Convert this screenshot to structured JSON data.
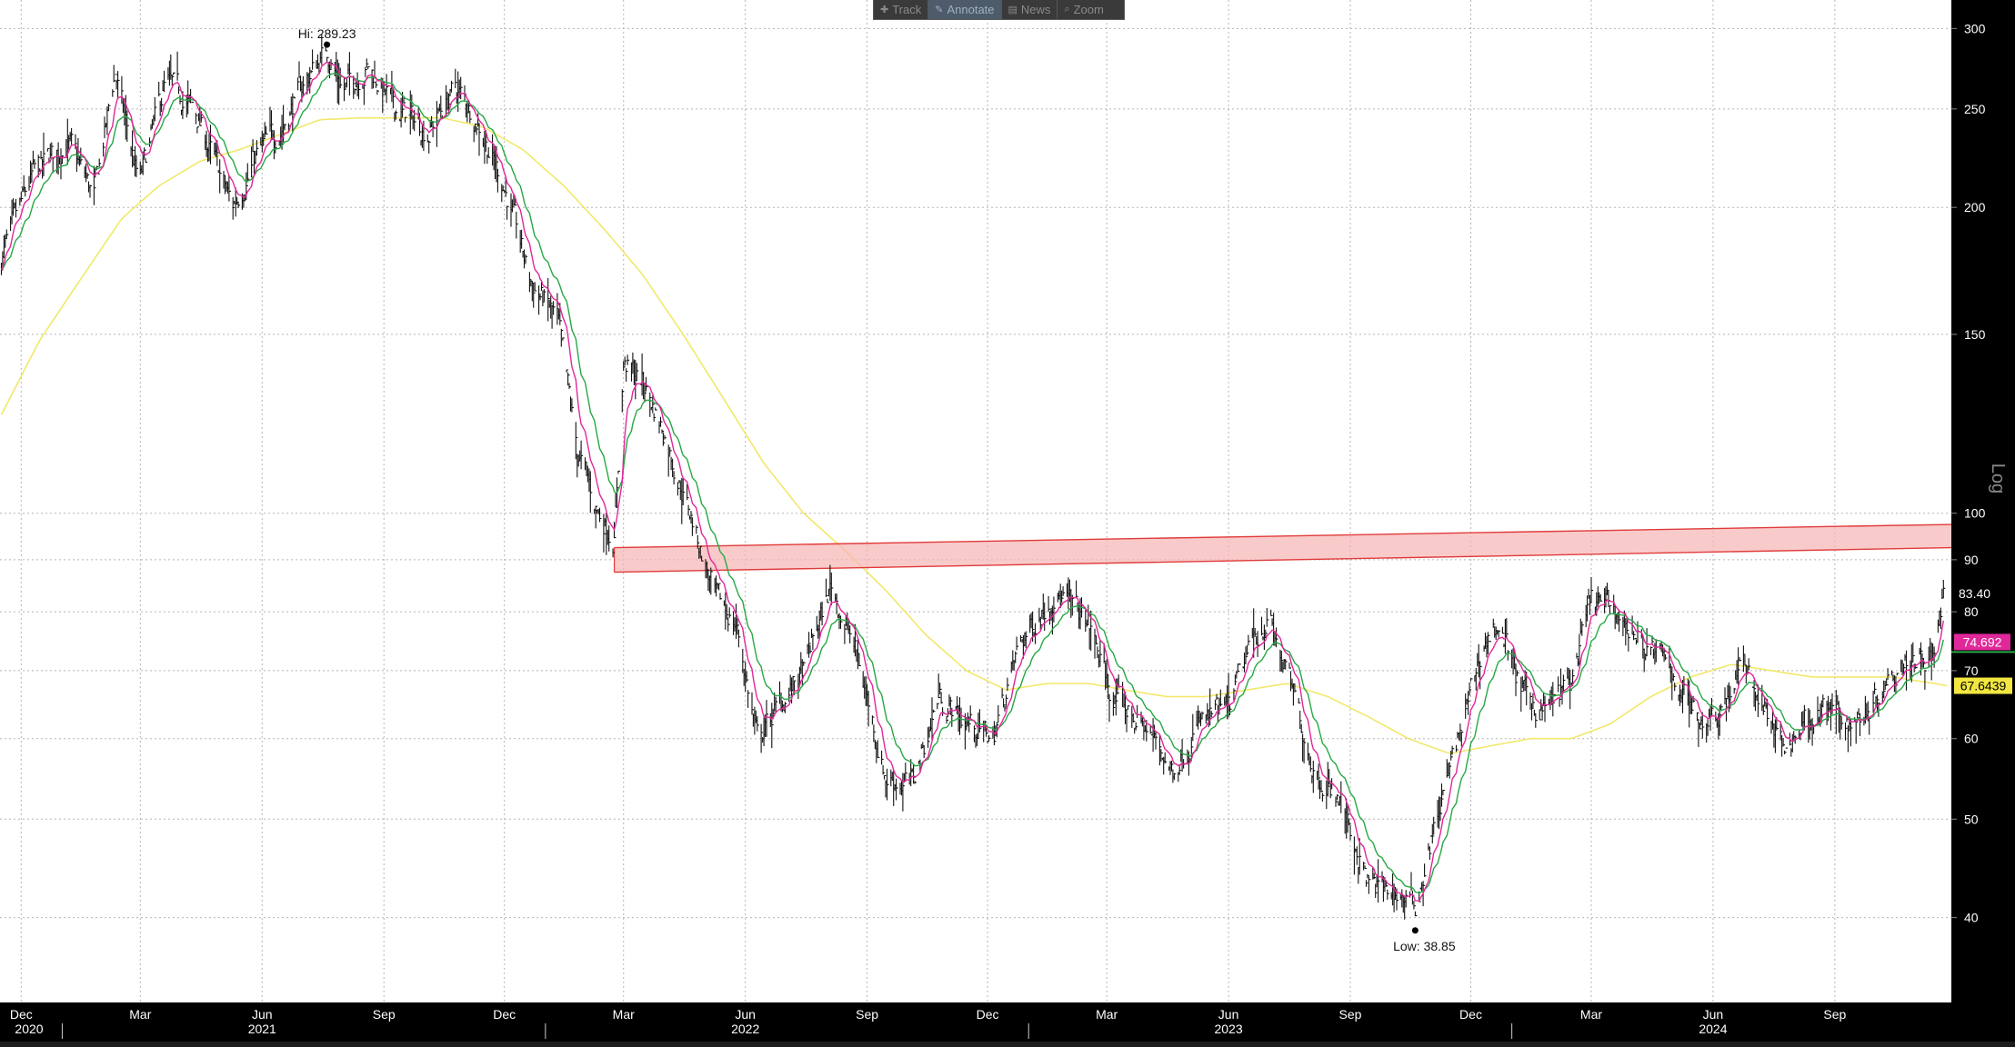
{
  "toolbar": {
    "items": [
      {
        "label": "Track",
        "icon": "crosshair-icon"
      },
      {
        "label": "Annotate",
        "icon": "pencil-icon"
      },
      {
        "label": "News",
        "icon": "news-icon"
      },
      {
        "label": "Zoom",
        "icon": "magnifier-icon"
      }
    ],
    "active_index": 1
  },
  "chart_data": {
    "type": "line",
    "title": "",
    "yscale": "log",
    "scale_label": "Log",
    "ylim": [
      33,
      320
    ],
    "y_ticks": [
      40,
      50,
      60,
      70,
      80,
      90,
      100,
      150,
      200,
      250,
      300
    ],
    "x_range": [
      "2020-11-15",
      "2024-11-28"
    ],
    "x_month_ticks": [
      {
        "date": "2020-12-01",
        "label": "Dec"
      },
      {
        "date": "2021-03-01",
        "label": "Mar"
      },
      {
        "date": "2021-06-01",
        "label": "Jun"
      },
      {
        "date": "2021-09-01",
        "label": "Sep"
      },
      {
        "date": "2021-12-01",
        "label": "Dec"
      },
      {
        "date": "2022-03-01",
        "label": "Mar"
      },
      {
        "date": "2022-06-01",
        "label": "Jun"
      },
      {
        "date": "2022-09-01",
        "label": "Sep"
      },
      {
        "date": "2022-12-01",
        "label": "Dec"
      },
      {
        "date": "2023-03-01",
        "label": "Mar"
      },
      {
        "date": "2023-06-01",
        "label": "Jun"
      },
      {
        "date": "2023-09-01",
        "label": "Sep"
      },
      {
        "date": "2023-12-01",
        "label": "Dec"
      },
      {
        "date": "2024-03-01",
        "label": "Mar"
      },
      {
        "date": "2024-06-01",
        "label": "Jun"
      },
      {
        "date": "2024-09-01",
        "label": "Sep"
      }
    ],
    "x_year_labels": [
      {
        "date": "2020-11-20",
        "label": "2020"
      },
      {
        "date": "2021-06-01",
        "label": "2021"
      },
      {
        "date": "2022-06-01",
        "label": "2022"
      },
      {
        "date": "2023-06-01",
        "label": "2023"
      },
      {
        "date": "2024-06-01",
        "label": "2024"
      }
    ],
    "x_year_separators": [
      "2021-01-01",
      "2022-01-01",
      "2023-01-01",
      "2024-01-01"
    ],
    "grid": true,
    "price_anchors": [
      [
        "2020-11-16",
        178
      ],
      [
        "2020-12-10",
        215
      ],
      [
        "2021-01-05",
        232
      ],
      [
        "2021-01-25",
        205
      ],
      [
        "2021-02-10",
        272
      ],
      [
        "2021-02-28",
        210
      ],
      [
        "2021-03-20",
        265
      ],
      [
        "2021-04-10",
        250
      ],
      [
        "2021-05-10",
        200
      ],
      [
        "2021-05-25",
        222
      ],
      [
        "2021-06-15",
        240
      ],
      [
        "2021-07-05",
        268
      ],
      [
        "2021-07-20",
        286
      ],
      [
        "2021-08-01",
        262
      ],
      [
        "2021-08-20",
        275
      ],
      [
        "2021-09-10",
        250
      ],
      [
        "2021-10-05",
        238
      ],
      [
        "2021-10-25",
        262
      ],
      [
        "2021-11-10",
        245
      ],
      [
        "2021-12-01",
        210
      ],
      [
        "2021-12-20",
        170
      ],
      [
        "2022-01-10",
        155
      ],
      [
        "2022-01-25",
        115
      ],
      [
        "2022-02-10",
        100
      ],
      [
        "2022-02-22",
        95
      ],
      [
        "2022-03-01",
        140
      ],
      [
        "2022-03-15",
        135
      ],
      [
        "2022-04-01",
        120
      ],
      [
        "2022-04-20",
        100
      ],
      [
        "2022-05-10",
        82
      ],
      [
        "2022-05-25",
        78
      ],
      [
        "2022-06-10",
        60
      ],
      [
        "2022-06-25",
        64
      ],
      [
        "2022-07-15",
        70
      ],
      [
        "2022-08-05",
        85
      ],
      [
        "2022-08-25",
        72
      ],
      [
        "2022-09-15",
        55
      ],
      [
        "2022-10-05",
        54
      ],
      [
        "2022-10-25",
        66
      ],
      [
        "2022-11-10",
        63
      ],
      [
        "2022-12-05",
        60
      ],
      [
        "2022-12-25",
        74
      ],
      [
        "2023-01-20",
        84
      ],
      [
        "2023-02-15",
        78
      ],
      [
        "2023-03-05",
        66
      ],
      [
        "2023-04-01",
        61
      ],
      [
        "2023-04-20",
        56
      ],
      [
        "2023-05-10",
        62
      ],
      [
        "2023-06-01",
        64
      ],
      [
        "2023-06-20",
        75
      ],
      [
        "2023-07-01",
        79
      ],
      [
        "2023-07-20",
        66
      ],
      [
        "2023-08-05",
        56
      ],
      [
        "2023-08-25",
        52
      ],
      [
        "2023-09-15",
        43
      ],
      [
        "2023-10-10",
        42
      ],
      [
        "2023-10-20",
        41
      ],
      [
        "2023-11-05",
        50
      ],
      [
        "2023-11-25",
        62
      ],
      [
        "2023-12-10",
        74
      ],
      [
        "2023-12-22",
        78
      ],
      [
        "2024-01-10",
        66
      ],
      [
        "2024-01-25",
        64
      ],
      [
        "2024-02-15",
        68
      ],
      [
        "2024-03-01",
        82
      ],
      [
        "2024-03-20",
        80
      ],
      [
        "2024-04-10",
        74
      ],
      [
        "2024-05-01",
        70
      ],
      [
        "2024-05-20",
        63
      ],
      [
        "2024-06-05",
        64
      ],
      [
        "2024-06-25",
        71
      ],
      [
        "2024-07-15",
        62
      ],
      [
        "2024-07-25",
        58
      ],
      [
        "2024-08-10",
        63
      ],
      [
        "2024-08-25",
        64
      ],
      [
        "2024-09-15",
        62
      ],
      [
        "2024-10-01",
        66
      ],
      [
        "2024-10-20",
        72
      ],
      [
        "2024-11-05",
        73
      ],
      [
        "2024-11-15",
        72
      ],
      [
        "2024-11-22",
        83
      ]
    ],
    "ma_long_anchors": [
      [
        "2020-11-16",
        125
      ],
      [
        "2020-12-15",
        148
      ],
      [
        "2021-01-15",
        170
      ],
      [
        "2021-02-15",
        195
      ],
      [
        "2021-03-15",
        210
      ],
      [
        "2021-04-15",
        222
      ],
      [
        "2021-05-15",
        228
      ],
      [
        "2021-06-15",
        236
      ],
      [
        "2021-07-15",
        244
      ],
      [
        "2021-08-15",
        245
      ],
      [
        "2021-09-15",
        245
      ],
      [
        "2021-10-15",
        245
      ],
      [
        "2021-11-15",
        240
      ],
      [
        "2021-12-15",
        228
      ],
      [
        "2022-01-15",
        210
      ],
      [
        "2022-02-15",
        190
      ],
      [
        "2022-03-15",
        172
      ],
      [
        "2022-04-15",
        150
      ],
      [
        "2022-05-15",
        130
      ],
      [
        "2022-06-15",
        112
      ],
      [
        "2022-07-15",
        100
      ],
      [
        "2022-08-15",
        92
      ],
      [
        "2022-09-15",
        84
      ],
      [
        "2022-10-15",
        76
      ],
      [
        "2022-11-15",
        70
      ],
      [
        "2022-12-15",
        67
      ],
      [
        "2023-01-15",
        68
      ],
      [
        "2023-02-15",
        68
      ],
      [
        "2023-03-15",
        67
      ],
      [
        "2023-04-15",
        66
      ],
      [
        "2023-05-15",
        66
      ],
      [
        "2023-06-15",
        67
      ],
      [
        "2023-07-15",
        68
      ],
      [
        "2023-08-15",
        66
      ],
      [
        "2023-09-15",
        63
      ],
      [
        "2023-10-15",
        60
      ],
      [
        "2023-11-15",
        58
      ],
      [
        "2023-12-15",
        59
      ],
      [
        "2024-01-15",
        60
      ],
      [
        "2024-02-15",
        60
      ],
      [
        "2024-03-15",
        62
      ],
      [
        "2024-04-15",
        66
      ],
      [
        "2024-05-15",
        69
      ],
      [
        "2024-06-15",
        71
      ],
      [
        "2024-07-15",
        70
      ],
      [
        "2024-08-15",
        69
      ],
      [
        "2024-09-15",
        69
      ],
      [
        "2024-10-15",
        69
      ],
      [
        "2024-11-15",
        68
      ],
      [
        "2024-11-25",
        67.6439
      ]
    ],
    "channel": {
      "start": "2022-02-22",
      "end": "2024-11-28",
      "top_start": 92.5,
      "top_end": 97.5,
      "bottom_start": 87.5,
      "bottom_end": 92.5
    },
    "annotations": {
      "high": {
        "label": "Hi: 289.23",
        "date": "2021-07-20",
        "value": 289.23
      },
      "low": {
        "label": "Low: 38.85",
        "date": "2023-10-20",
        "value": 38.85
      }
    },
    "last_price": {
      "label": "83.40",
      "value": 83.4
    },
    "last_ma_short": {
      "label": "74.692",
      "value": 74.692
    },
    "last_ma_long": {
      "label": "67.6439",
      "value": 67.6439
    },
    "colors": {
      "price": "#111111",
      "ma_short": "#e0289a",
      "ma_mid": "#27a844",
      "ma_long": "#f2e86a",
      "channel_fill": "#f7b3b3",
      "channel_line": "#e03a3a",
      "grid": "#b5b5b5",
      "axis_bg": "#000000",
      "axis_text": "#ffffff",
      "ma_short_badge": "#e0289a",
      "ma_long_badge": "#f2e641"
    }
  }
}
